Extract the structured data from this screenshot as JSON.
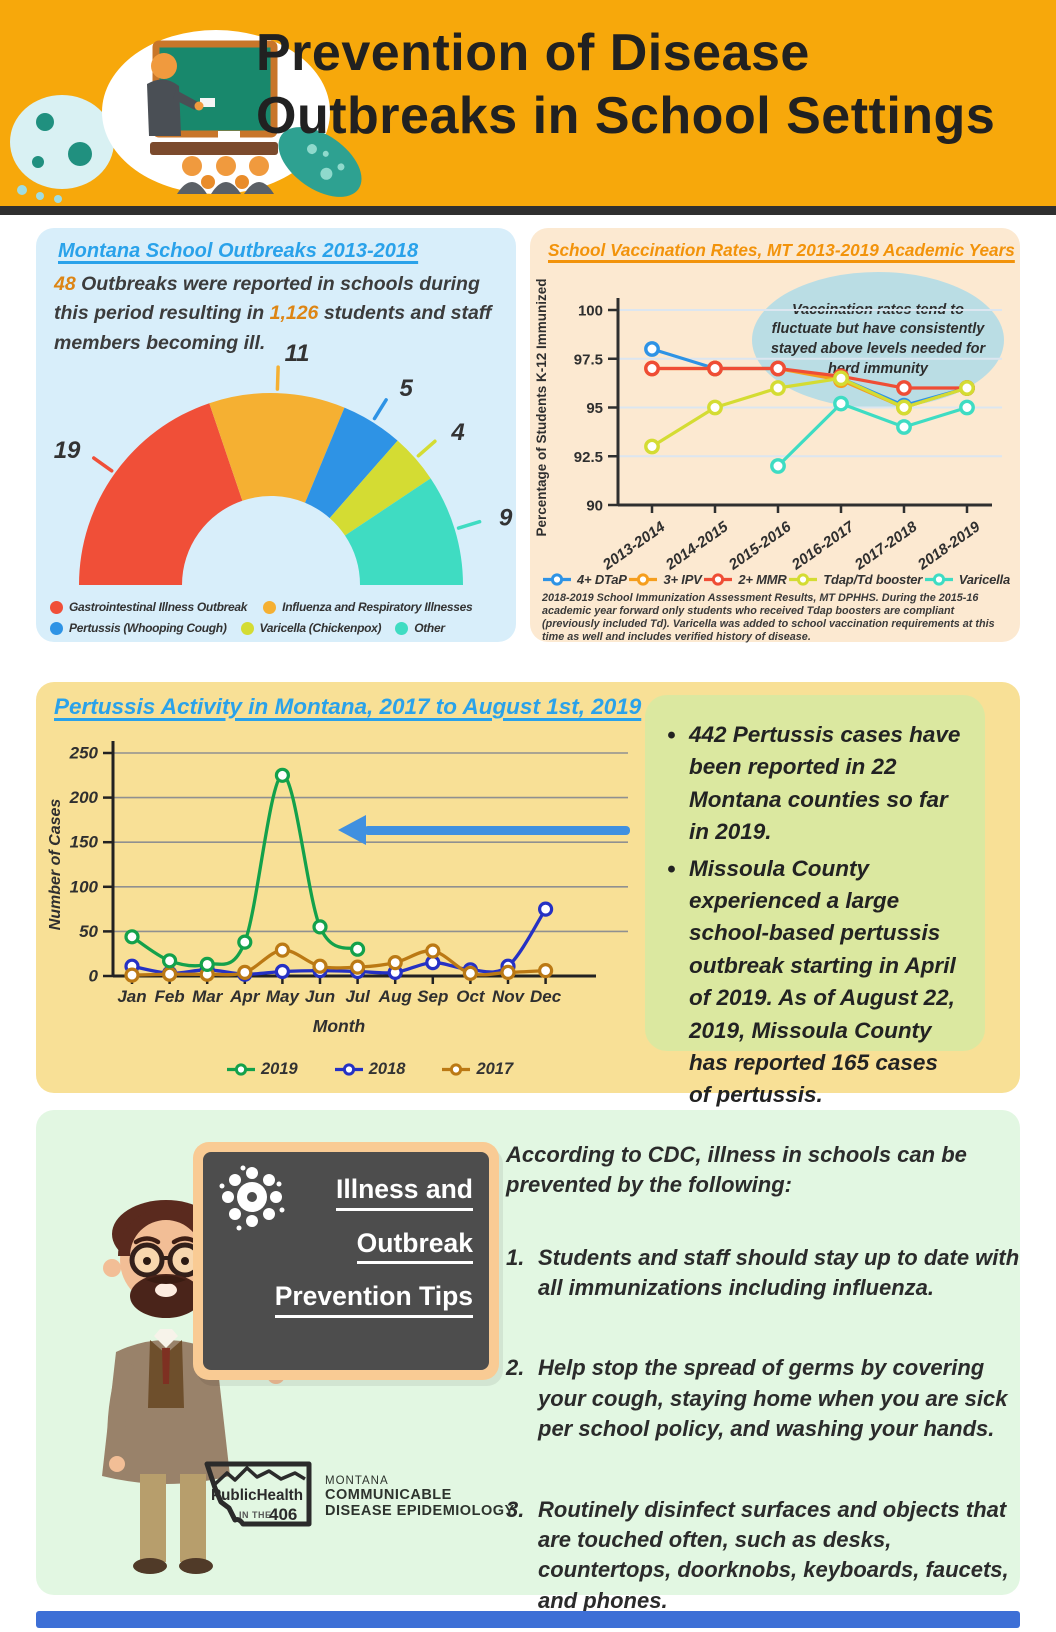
{
  "header": {
    "title_line1": "Prevention of  Disease",
    "title_line2": "Outbreaks in School Settings",
    "bg_color": "#F7A80B"
  },
  "outbreaks": {
    "stat_outbreaks": "48",
    "text_a": " Outbreaks were reported in schools during this period resulting in ",
    "stat_ill": "1,126",
    "text_b": " students and staff members becoming ill.",
    "accent_color": "#DD8514",
    "panel_color": "#D8EEFA"
  },
  "vaccination": {
    "callout": "Vaccination rates tend to fluctuate but have consistently stayed above levels needed for herd immunity",
    "footnote": "2018-2019 School Immunization Assessment Results, MT DPHHS. During the 2015-16 academic year forward only students who received Tdap boosters are compliant (previously included Td). Varicella was added to school vaccination requirements at this time as well and includes verified history of disease.",
    "panel_color": "#FCE9D1"
  },
  "pertussis": {
    "bullets": [
      "442 Pertussis cases have been reported in 22 Montana counties so far in 2019.",
      "Missoula County experienced a large school-based pertussis outbreak starting in April of 2019.  As of August 22, 2019, Missoula County has reported 165 cases of pertussis."
    ],
    "panel_color": "#F8E096",
    "note_box_color": "#DBE8A0",
    "arrow_color": "#4090E0"
  },
  "prevention": {
    "board_lines": [
      "Illness and",
      "Outbreak",
      "Prevention Tips"
    ],
    "intro": "According to CDC, illness in schools can be prevented by the following:",
    "tips": [
      {
        "num": "1.",
        "text": "Students and staff should stay up to date with all immunizations including influenza."
      },
      {
        "num": "2.",
        "text": "Help stop the spread of germs by covering your cough, staying home when you are sick per school policy, and washing your hands."
      },
      {
        "num": "3.",
        "text": "Routinely disinfect surfaces and objects that are touched often, such as desks, countertops, doorknobs, keyboards, faucets, and phones."
      }
    ],
    "logo": {
      "name": "PublicHealth",
      "sub_pre": "IN THE",
      "sub_num": "406",
      "org1": "MONTANA",
      "org2": "COMMUNICABLE",
      "org3": "DISEASE EPIDEMIOLOGY"
    },
    "panel_color": "#E2F7E2"
  },
  "chart_data": [
    {
      "type": "pie",
      "shape": "semi-donut",
      "title": "Montana School Outbreaks 2013-2018",
      "total": 48,
      "segments": [
        {
          "label": "Gastrointestinal Illness Outbreak",
          "value": 19,
          "color": "#F04F38"
        },
        {
          "label": "Influenza and Respiratory Illnesses",
          "value": 11,
          "color": "#F5B032"
        },
        {
          "label": "Pertussis (Whooping Cough)",
          "value": 5,
          "color": "#2E93E5"
        },
        {
          "label": "Varicella (Chickenpox)",
          "value": 4,
          "color": "#D4DC33"
        },
        {
          "label": "Other",
          "value": 9,
          "color": "#3FDCC2"
        }
      ],
      "legend_position": "bottom"
    },
    {
      "type": "line",
      "title": "School Vaccination Rates, MT 2013-2019 Academic Years",
      "ylabel": "Percentage of Students K-12 Immunized",
      "x": [
        "2013-2014",
        "2014-2015",
        "2015-2016",
        "2016-2017",
        "2017-2018",
        "2018-2019"
      ],
      "ylim": [
        90,
        100
      ],
      "yticks": [
        90,
        92.5,
        95,
        97.5,
        100
      ],
      "grid": true,
      "legend_position": "bottom",
      "series": [
        {
          "name": "4+ DTaP",
          "color": "#2E93E5",
          "values": [
            98,
            97,
            97,
            96.5,
            95.1,
            96
          ]
        },
        {
          "name": "3+ IPV",
          "color": "#F59E1E",
          "values": [
            97,
            97,
            97,
            96.4,
            95,
            96
          ]
        },
        {
          "name": "2+ MMR",
          "color": "#EF4D35",
          "values": [
            97,
            97,
            97,
            96.6,
            96,
            96
          ]
        },
        {
          "name": "Tdap/Td booster",
          "color": "#D4DC33",
          "values": [
            93,
            95,
            96,
            96.5,
            95,
            96
          ]
        },
        {
          "name": "Varicella",
          "color": "#3EDCC3",
          "values": [
            null,
            null,
            92,
            95.2,
            94,
            95
          ]
        }
      ]
    },
    {
      "type": "line",
      "title": "Pertussis Activity in Montana, 2017 to August 1st, 2019",
      "xlabel": "Month",
      "ylabel": "Number of Cases",
      "x": [
        "Jan",
        "Feb",
        "Mar",
        "Apr",
        "May",
        "Jun",
        "Jul",
        "Aug",
        "Sep",
        "Oct",
        "Nov",
        "Dec"
      ],
      "ylim": [
        0,
        250
      ],
      "yticks": [
        0,
        50,
        100,
        150,
        200,
        250
      ],
      "grid": true,
      "legend_position": "bottom",
      "series": [
        {
          "name": "2019",
          "color": "#13A14B",
          "values": [
            44,
            17,
            13,
            38,
            225,
            55,
            30,
            null,
            null,
            null,
            null,
            null
          ]
        },
        {
          "name": "2018",
          "color": "#2531C4",
          "values": [
            11,
            3,
            7,
            2,
            5,
            6,
            5,
            4,
            15,
            7,
            11,
            75
          ]
        },
        {
          "name": "2017",
          "color": "#BB7914",
          "values": [
            1,
            2,
            2,
            4,
            29,
            11,
            10,
            15,
            28,
            3,
            4,
            6
          ]
        }
      ]
    }
  ]
}
